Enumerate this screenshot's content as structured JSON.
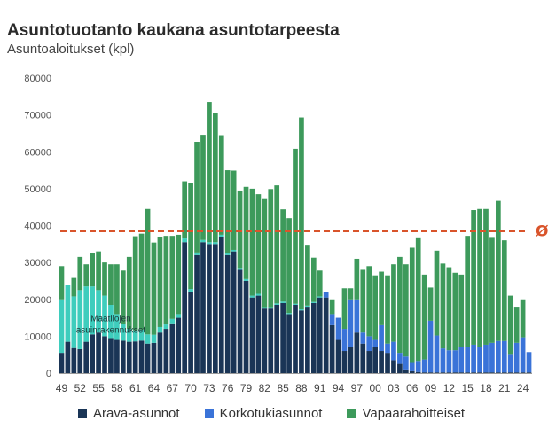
{
  "chart_data": {
    "type": "bar",
    "stacked": true,
    "title": "Asuntotuotanto kaukana asuntotarpeesta",
    "subtitle": "Asuntoaloitukset (kpl)",
    "ylim": [
      0,
      80000
    ],
    "yticks": [
      "0",
      "10000",
      "20000",
      "30000",
      "40000",
      "50000",
      "60000",
      "70000",
      "80000"
    ],
    "years": [
      1949,
      1950,
      1951,
      1952,
      1953,
      1954,
      1955,
      1956,
      1957,
      1958,
      1959,
      1960,
      1961,
      1962,
      1963,
      1964,
      1965,
      1966,
      1967,
      1968,
      1969,
      1970,
      1971,
      1972,
      1973,
      1974,
      1975,
      1976,
      1977,
      1978,
      1979,
      1980,
      1981,
      1982,
      1983,
      1984,
      1985,
      1986,
      1987,
      1988,
      1989,
      1990,
      1991,
      1992,
      1993,
      1994,
      1995,
      1996,
      1997,
      1998,
      1999,
      2000,
      2001,
      2002,
      2003,
      2004,
      2005,
      2006,
      2007,
      2008,
      2009,
      2010,
      2011,
      2012,
      2013,
      2014,
      2015,
      2016,
      2017,
      2018,
      2019,
      2020,
      2021,
      2022,
      2023,
      2024,
      2025
    ],
    "xtick_labels": [
      "49",
      "52",
      "55",
      "58",
      "61",
      "64",
      "67",
      "70",
      "73",
      "76",
      "79",
      "82",
      "85",
      "88",
      "91",
      "94",
      "97",
      "00",
      "03",
      "06",
      "09",
      "12",
      "15",
      "18",
      "21",
      "24"
    ],
    "series": [
      {
        "name": "Arava-asunnot",
        "color": "#1a3556",
        "values": [
          5500,
          8500,
          6800,
          6500,
          8500,
          10500,
          11000,
          10000,
          9500,
          9000,
          8800,
          8500,
          8600,
          8800,
          8000,
          8200,
          11000,
          12000,
          13500,
          15000,
          35500,
          22000,
          32000,
          35500,
          35000,
          35000,
          37000,
          32000,
          33000,
          28000,
          25000,
          20500,
          21000,
          17500,
          17500,
          18500,
          19000,
          16000,
          18500,
          17000,
          18000,
          19000,
          20500,
          20500,
          13000,
          9000,
          6000,
          7000,
          11000,
          8000,
          6000,
          7000,
          6000,
          5500,
          3500,
          2500,
          1000,
          500,
          300,
          200,
          200,
          200,
          200,
          200,
          200,
          200,
          200,
          200,
          200,
          200,
          200,
          200,
          200,
          200,
          200,
          200,
          200
        ]
      },
      {
        "name": "Korkotukiasunnot",
        "color": "#3a73d8",
        "values": [
          0,
          0,
          0,
          0,
          0,
          0,
          0,
          0,
          0,
          0,
          0,
          0,
          0,
          0,
          0,
          0,
          0,
          0,
          0,
          0,
          0,
          0,
          0,
          0,
          0,
          0,
          0,
          0,
          0,
          0,
          0,
          0,
          0,
          0,
          0,
          0,
          0,
          0,
          0,
          0,
          0,
          0,
          0,
          1500,
          3000,
          6000,
          6000,
          13000,
          9000,
          3000,
          4000,
          2000,
          7000,
          2500,
          5000,
          3000,
          3500,
          2500,
          3000,
          3500,
          14000,
          10000,
          6500,
          6000,
          6000,
          7000,
          7000,
          7500,
          7000,
          7500,
          8000,
          8500,
          8500,
          5000,
          8000,
          9500,
          5500
        ]
      },
      {
        "name": "Maatilojen asuinrakennukset",
        "color": "#3ecdbd",
        "values": [
          14500,
          15500,
          14000,
          16000,
          15000,
          13000,
          11500,
          11000,
          9000,
          7000,
          4500,
          3500,
          3000,
          3000,
          2500,
          2200,
          1500,
          1200,
          1200,
          1000,
          1000,
          800,
          700,
          600,
          500,
          500,
          500,
          500,
          400,
          500,
          500,
          500,
          500,
          400,
          400,
          400,
          400,
          300,
          300,
          300,
          300,
          300,
          300,
          0,
          0,
          0,
          0,
          0,
          0,
          0,
          0,
          0,
          0,
          0,
          0,
          0,
          0,
          0,
          0,
          0,
          0,
          0,
          0,
          0,
          0,
          0,
          0,
          0,
          0,
          0,
          0,
          0,
          0,
          0,
          0,
          0,
          0
        ]
      },
      {
        "name": "Vapaarahoitteiset",
        "color": "#3d9a5b",
        "values": [
          9000,
          0,
          5000,
          9000,
          6000,
          9000,
          10500,
          9000,
          11000,
          13500,
          14500,
          19500,
          25500,
          26000,
          34000,
          25000,
          24500,
          24000,
          22500,
          21500,
          15500,
          28700,
          30000,
          28500,
          38000,
          35000,
          27000,
          22500,
          21500,
          21000,
          25000,
          29000,
          27000,
          29500,
          32000,
          32000,
          25000,
          25700,
          42000,
          52000,
          16500,
          12000,
          7000,
          0,
          4000,
          0,
          11000,
          3000,
          11000,
          17000,
          19000,
          17500,
          14500,
          18500,
          21000,
          26000,
          25000,
          31000,
          33500,
          23000,
          9000,
          23000,
          23000,
          22500,
          21000,
          19500,
          30000,
          36500,
          37300,
          36800,
          28700,
          38000,
          27300,
          15800,
          9800,
          10300,
          0
        ]
      }
    ],
    "reference_line": {
      "value": 38500,
      "label": "Ø",
      "color": "#d9542b"
    },
    "annotation": {
      "text": "Maatilojen\nasuinrakennukset",
      "year": 1957,
      "value": 15500
    },
    "legend": [
      "Arava-asunnot",
      "Korkotukiasunnot",
      "Vapaarahoitteiset"
    ],
    "legend_colors": [
      "#1a3556",
      "#3a73d8",
      "#3d9a5b"
    ],
    "legend_position": "bottom"
  }
}
